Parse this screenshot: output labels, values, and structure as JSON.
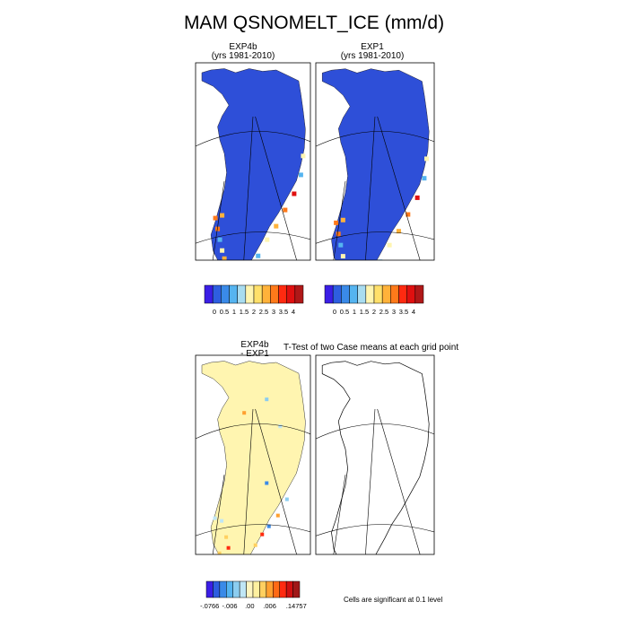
{
  "figure": {
    "title": "MAM QSNOMELT_ICE (mm/d)"
  },
  "panels": {
    "p1": {
      "line1": "EXP4b",
      "line2": "(yrs 1981-2010)"
    },
    "p2": {
      "line1": "EXP1",
      "line2": "(yrs 1981-2010)"
    },
    "p3": {
      "line1": "EXP4b",
      "line2": "- EXP1"
    },
    "p4": {
      "title": "T-Test of two Case means at each grid point"
    }
  },
  "colorbars": {
    "top": {
      "colors": [
        "#3b1ee6",
        "#2e5ee0",
        "#3a8ae8",
        "#55b4f0",
        "#a8dcf0",
        "#fff5b0",
        "#ffe06a",
        "#ffb23a",
        "#ff7a1a",
        "#ff2a10",
        "#e01010",
        "#b01818"
      ],
      "labels": [
        "0",
        "0.5",
        "1",
        "1.5",
        "2",
        "2.5",
        "3",
        "3.5",
        "4"
      ]
    },
    "bottom": {
      "colors": [
        "#3b1ee6",
        "#2e5ee0",
        "#3a8ae8",
        "#55b4f0",
        "#8ccdf0",
        "#c0e6f5",
        "#fff5c0",
        "#fff0a0",
        "#ffd060",
        "#ffa030",
        "#ff6a15",
        "#ff2a10",
        "#d01010",
        "#a01818"
      ],
      "labels": [
        "-.0766",
        "-.006",
        ".00",
        ".006",
        ".14757"
      ]
    }
  },
  "note": "Cells are significant at 0.1 level"
}
